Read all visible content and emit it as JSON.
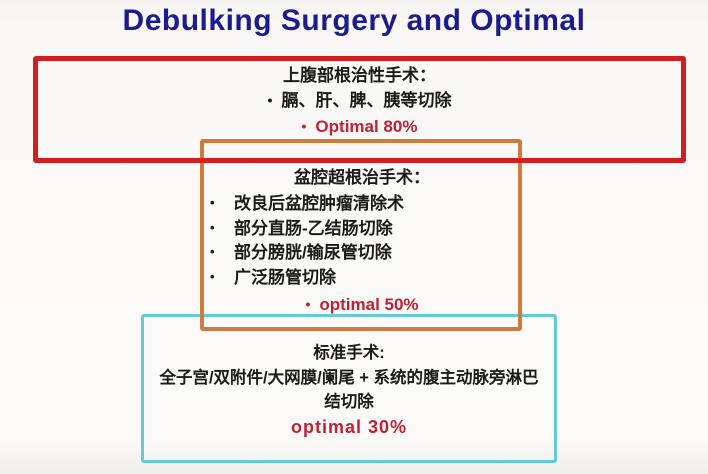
{
  "title": "Debulking Surgery and Optimal",
  "ui": {
    "bullet": "•"
  },
  "colors": {
    "title_navy": "#1c1c8e",
    "red_box_border": "#d21e1e",
    "orange_box_border": "#cd7c3e",
    "cyan_box_border": "#66c9d8",
    "optimal_text_red": "#c32033",
    "body_text": "#1d1b1a"
  },
  "boxes": {
    "upper": {
      "title": "上腹部根治性手术：",
      "items": [
        "膈、肝、脾、胰等切除"
      ],
      "optimal": "Optimal 80%"
    },
    "pelvic": {
      "title": "盆腔超根治手术：",
      "items": [
        "改良后盆腔肿瘤清除术",
        "部分直肠-乙结肠切除",
        "部分膀胱/输尿管切除",
        "广泛肠管切除"
      ],
      "optimal": "optimal 50%"
    },
    "standard": {
      "title": "标准手术:",
      "body_line1": "全子宫/双附件/大网膜/阑尾 + 系统的腹主动脉旁淋巴",
      "body_line2": "结切除",
      "optimal": "optimal 30%"
    }
  }
}
